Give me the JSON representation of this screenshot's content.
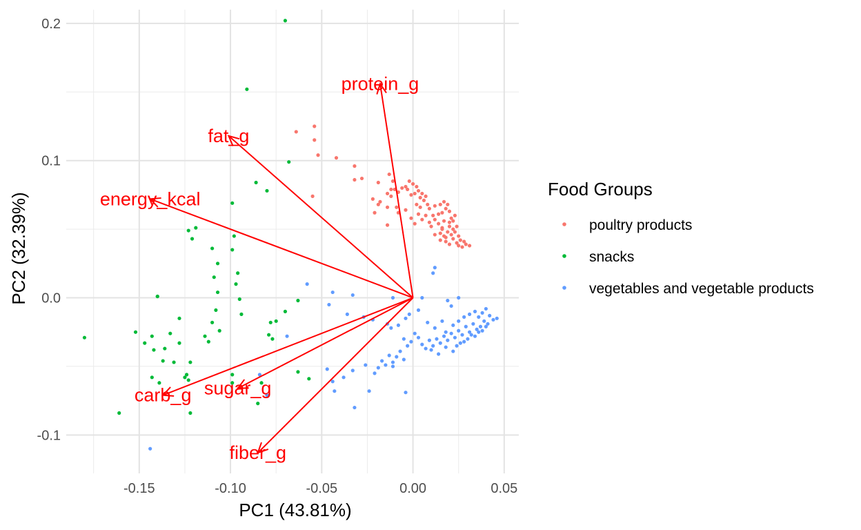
{
  "chart_data": {
    "type": "scatter",
    "subtype": "pca-biplot",
    "title": "",
    "xlabel": "PC1 (43.81%)",
    "ylabel": "PC2 (32.39%)",
    "xlim": [
      -0.19,
      0.058
    ],
    "ylim": [
      -0.128,
      0.21
    ],
    "x_ticks": [
      -0.15,
      -0.1,
      -0.05,
      0.0,
      0.05
    ],
    "x_tick_labels": [
      "-0.15",
      "-0.10",
      "-0.05",
      "0.00",
      "0.05"
    ],
    "y_ticks": [
      -0.1,
      0.0,
      0.1,
      0.2
    ],
    "y_tick_labels": [
      "-0.1",
      "0.0",
      "0.1",
      "0.2"
    ],
    "grid": true,
    "legend": {
      "title": "Food Groups",
      "position": "right",
      "entries": [
        {
          "label": "poultry products",
          "color": "#F8766D"
        },
        {
          "label": "snacks",
          "color": "#00BA38"
        },
        {
          "label": "vegetables and vegetable products",
          "color": "#619CFF"
        }
      ]
    },
    "loadings_color": "#FF0000",
    "loadings": [
      {
        "name": "protein_g",
        "x": -0.018,
        "y": 0.156
      },
      {
        "name": "fat_g",
        "x": -0.101,
        "y": 0.118
      },
      {
        "name": "energy_kcal",
        "x": -0.144,
        "y": 0.072
      },
      {
        "name": "carb_g",
        "x": -0.137,
        "y": -0.071
      },
      {
        "name": "sugar_g",
        "x": -0.096,
        "y": -0.066
      },
      {
        "name": "fiber_g",
        "x": -0.085,
        "y": -0.113
      }
    ],
    "series": [
      {
        "name": "poultry products",
        "color": "#F8766D",
        "points": [
          [
            -0.054,
            0.125
          ],
          [
            -0.064,
            0.121
          ],
          [
            -0.054,
            0.115
          ],
          [
            -0.052,
            0.104
          ],
          [
            -0.042,
            0.102
          ],
          [
            -0.055,
            0.074
          ],
          [
            -0.032,
            0.096
          ],
          [
            -0.028,
            0.087
          ],
          [
            -0.032,
            0.086
          ],
          [
            -0.019,
            0.084
          ],
          [
            -0.013,
            0.09
          ],
          [
            -0.011,
            0.085
          ],
          [
            -0.004,
            0.081
          ],
          [
            -0.002,
            0.085
          ],
          [
            0.0,
            0.083
          ],
          [
            0.002,
            0.081
          ],
          [
            -0.012,
            0.079
          ],
          [
            -0.01,
            0.079
          ],
          [
            -0.006,
            0.08
          ],
          [
            -0.003,
            0.079
          ],
          [
            -0.001,
            0.075
          ],
          [
            -0.008,
            0.077
          ],
          [
            -0.012,
            0.074
          ],
          [
            -0.014,
            0.076
          ],
          [
            0.001,
            0.076
          ],
          [
            0.003,
            0.078
          ],
          [
            0.005,
            0.076
          ],
          [
            0.004,
            0.073
          ],
          [
            0.006,
            0.071
          ],
          [
            0.007,
            0.074
          ],
          [
            -0.018,
            0.07
          ],
          [
            -0.022,
            0.072
          ],
          [
            -0.019,
            0.068
          ],
          [
            -0.014,
            0.066
          ],
          [
            -0.009,
            0.066
          ],
          [
            -0.004,
            0.064
          ],
          [
            0.002,
            0.068
          ],
          [
            0.004,
            0.066
          ],
          [
            0.008,
            0.068
          ],
          [
            0.009,
            0.065
          ],
          [
            0.012,
            0.067
          ],
          [
            0.015,
            0.068
          ],
          [
            0.017,
            0.07
          ],
          [
            0.019,
            0.068
          ],
          [
            0.018,
            0.065
          ],
          [
            0.016,
            0.062
          ],
          [
            0.02,
            0.063
          ],
          [
            0.014,
            0.061
          ],
          [
            0.011,
            0.06
          ],
          [
            0.007,
            0.06
          ],
          [
            0.003,
            0.061
          ],
          [
            -0.001,
            0.058
          ],
          [
            0.001,
            0.054
          ],
          [
            0.005,
            0.057
          ],
          [
            0.009,
            0.055
          ],
          [
            0.012,
            0.057
          ],
          [
            0.014,
            0.054
          ],
          [
            0.017,
            0.056
          ],
          [
            0.021,
            0.058
          ],
          [
            0.023,
            0.06
          ],
          [
            0.022,
            0.056
          ],
          [
            0.024,
            0.052
          ],
          [
            0.02,
            0.052
          ],
          [
            0.016,
            0.05
          ],
          [
            0.019,
            0.048
          ],
          [
            0.021,
            0.046
          ],
          [
            0.017,
            0.045
          ],
          [
            0.015,
            0.047
          ],
          [
            0.023,
            0.048
          ],
          [
            0.025,
            0.045
          ],
          [
            0.022,
            0.043
          ],
          [
            0.018,
            0.041
          ],
          [
            0.015,
            0.042
          ],
          [
            0.02,
            0.039
          ],
          [
            0.024,
            0.04
          ],
          [
            0.026,
            0.042
          ],
          [
            0.028,
            0.041
          ],
          [
            0.025,
            0.038
          ],
          [
            0.029,
            0.039
          ],
          [
            0.031,
            0.038
          ],
          [
            0.027,
            0.037
          ],
          [
            0.018,
            0.044
          ],
          [
            0.012,
            0.046
          ],
          [
            0.016,
            0.051
          ],
          [
            -0.014,
            0.053
          ],
          [
            -0.021,
            0.062
          ],
          [
            -0.008,
            0.062
          ],
          [
            0.02,
            0.055
          ],
          [
            0.022,
            0.05
          ],
          [
            0.01,
            0.052
          ]
        ]
      },
      {
        "name": "snacks",
        "color": "#00BA38",
        "points": [
          [
            -0.07,
            0.202
          ],
          [
            -0.091,
            0.152
          ],
          [
            -0.068,
            0.099
          ],
          [
            -0.086,
            0.084
          ],
          [
            -0.08,
            0.078
          ],
          [
            -0.099,
            0.069
          ],
          [
            -0.119,
            0.051
          ],
          [
            -0.123,
            0.049
          ],
          [
            -0.121,
            0.043
          ],
          [
            -0.098,
            0.045
          ],
          [
            -0.11,
            0.036
          ],
          [
            -0.099,
            0.035
          ],
          [
            -0.107,
            0.025
          ],
          [
            -0.109,
            0.015
          ],
          [
            -0.096,
            0.018
          ],
          [
            -0.097,
            0.01
          ],
          [
            -0.14,
            0.001
          ],
          [
            -0.107,
            0.004
          ],
          [
            -0.108,
            -0.009
          ],
          [
            -0.095,
            -0.001
          ],
          [
            -0.063,
            -0.002
          ],
          [
            -0.14,
            0.001
          ],
          [
            -0.128,
            -0.015
          ],
          [
            -0.11,
            -0.018
          ],
          [
            -0.07,
            -0.01
          ],
          [
            -0.075,
            -0.017
          ],
          [
            -0.078,
            -0.018
          ],
          [
            -0.079,
            -0.027
          ],
          [
            -0.077,
            -0.03
          ],
          [
            -0.106,
            -0.024
          ],
          [
            -0.114,
            -0.028
          ],
          [
            -0.112,
            -0.032
          ],
          [
            -0.18,
            -0.029
          ],
          [
            -0.152,
            -0.025
          ],
          [
            -0.143,
            -0.028
          ],
          [
            -0.133,
            -0.026
          ],
          [
            -0.147,
            -0.033
          ],
          [
            -0.136,
            -0.037
          ],
          [
            -0.142,
            -0.038
          ],
          [
            -0.128,
            -0.033
          ],
          [
            -0.122,
            -0.047
          ],
          [
            -0.137,
            -0.046
          ],
          [
            -0.131,
            -0.047
          ],
          [
            -0.124,
            -0.056
          ],
          [
            -0.125,
            -0.058
          ],
          [
            -0.123,
            -0.06
          ],
          [
            -0.143,
            -0.058
          ],
          [
            -0.139,
            -0.062
          ],
          [
            -0.161,
            -0.084
          ],
          [
            -0.122,
            -0.084
          ],
          [
            -0.085,
            -0.077
          ],
          [
            -0.057,
            -0.059
          ],
          [
            -0.063,
            -0.054
          ],
          [
            -0.099,
            -0.056
          ],
          [
            -0.083,
            -0.062
          ],
          [
            -0.099,
            -0.062
          ],
          [
            -0.094,
            -0.012
          ]
        ]
      },
      {
        "name": "vegetables and vegetable products",
        "color": "#619CFF",
        "points": [
          [
            0.012,
            0.022
          ],
          [
            0.011,
            0.018
          ],
          [
            -0.058,
            0.01
          ],
          [
            -0.044,
            0.004
          ],
          [
            -0.033,
            0.002
          ],
          [
            -0.011,
            0.0
          ],
          [
            0.005,
            0.0
          ],
          [
            0.025,
            0.0
          ],
          [
            0.019,
            -0.002
          ],
          [
            0.021,
            -0.006
          ],
          [
            -0.046,
            -0.005
          ],
          [
            -0.036,
            -0.012
          ],
          [
            -0.027,
            -0.014
          ],
          [
            -0.022,
            -0.016
          ],
          [
            -0.014,
            -0.019
          ],
          [
            -0.012,
            -0.022
          ],
          [
            -0.008,
            -0.02
          ],
          [
            -0.004,
            -0.015
          ],
          [
            -0.002,
            -0.012
          ],
          [
            0.003,
            -0.009
          ],
          [
            0.008,
            -0.018
          ],
          [
            0.012,
            -0.022
          ],
          [
            0.016,
            -0.017
          ],
          [
            0.018,
            -0.025
          ],
          [
            0.022,
            -0.02
          ],
          [
            0.025,
            -0.017
          ],
          [
            0.028,
            -0.014
          ],
          [
            0.031,
            -0.012
          ],
          [
            0.034,
            -0.01
          ],
          [
            0.036,
            -0.014
          ],
          [
            0.038,
            -0.011
          ],
          [
            0.04,
            -0.008
          ],
          [
            0.042,
            -0.013
          ],
          [
            0.044,
            -0.016
          ],
          [
            0.046,
            -0.015
          ],
          [
            0.041,
            -0.019
          ],
          [
            0.039,
            -0.017
          ],
          [
            0.037,
            -0.021
          ],
          [
            0.035,
            -0.023
          ],
          [
            0.033,
            -0.019
          ],
          [
            0.031,
            -0.025
          ],
          [
            0.029,
            -0.021
          ],
          [
            0.027,
            -0.027
          ],
          [
            0.025,
            -0.024
          ],
          [
            0.023,
            -0.029
          ],
          [
            0.021,
            -0.026
          ],
          [
            0.019,
            -0.031
          ],
          [
            0.017,
            -0.028
          ],
          [
            0.015,
            -0.033
          ],
          [
            0.013,
            -0.03
          ],
          [
            0.011,
            -0.035
          ],
          [
            0.009,
            -0.031
          ],
          [
            0.007,
            -0.037
          ],
          [
            0.005,
            -0.034
          ],
          [
            0.003,
            -0.029
          ],
          [
            0.001,
            -0.026
          ],
          [
            -0.001,
            -0.032
          ],
          [
            -0.003,
            -0.035
          ],
          [
            -0.005,
            -0.03
          ],
          [
            -0.007,
            -0.039
          ],
          [
            -0.009,
            -0.043
          ],
          [
            -0.011,
            -0.047
          ],
          [
            -0.013,
            -0.042
          ],
          [
            -0.015,
            -0.049
          ],
          [
            -0.017,
            -0.046
          ],
          [
            -0.019,
            -0.051
          ],
          [
            -0.021,
            -0.055
          ],
          [
            -0.026,
            -0.049
          ],
          [
            -0.033,
            -0.053
          ],
          [
            -0.038,
            -0.058
          ],
          [
            -0.044,
            -0.061
          ],
          [
            -0.047,
            -0.052
          ],
          [
            -0.043,
            -0.068
          ],
          [
            -0.032,
            -0.08
          ],
          [
            -0.024,
            -0.068
          ],
          [
            -0.011,
            -0.05
          ],
          [
            -0.004,
            -0.069
          ],
          [
            0.01,
            -0.038
          ],
          [
            0.014,
            -0.041
          ],
          [
            0.018,
            -0.036
          ],
          [
            0.022,
            -0.039
          ],
          [
            0.026,
            -0.033
          ],
          [
            0.03,
            -0.03
          ],
          [
            0.034,
            -0.028
          ],
          [
            0.036,
            -0.025
          ],
          [
            0.038,
            -0.024
          ],
          [
            0.04,
            -0.021
          ],
          [
            0.032,
            -0.027
          ],
          [
            0.028,
            -0.032
          ],
          [
            0.024,
            -0.035
          ],
          [
            -0.084,
            -0.056
          ],
          [
            -0.08,
            -0.071
          ],
          [
            -0.069,
            -0.028
          ],
          [
            -0.144,
            -0.11
          ],
          [
            -0.005,
            -0.045
          ]
        ]
      }
    ]
  }
}
